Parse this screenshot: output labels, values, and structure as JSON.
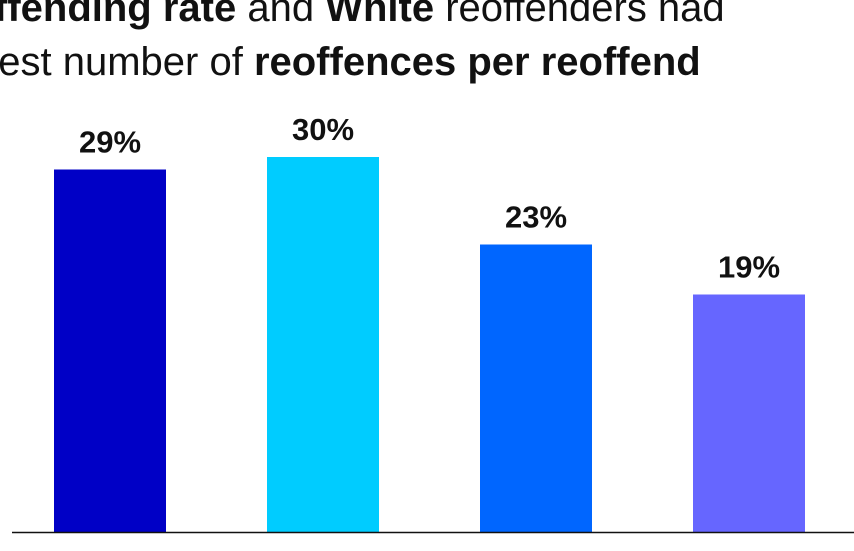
{
  "header": {
    "line1": [
      {
        "text": "ffending rate",
        "bold": true
      },
      {
        "text": " and ",
        "bold": false
      },
      {
        "text": "White",
        "bold": true
      },
      {
        "text": " reoffenders had",
        "bold": false
      }
    ],
    "line2": [
      {
        "text": "hest number of ",
        "bold": false
      },
      {
        "text": "reoffences per reoffend",
        "bold": true
      }
    ]
  },
  "chart_data": {
    "type": "bar",
    "categories": [
      "",
      "",
      "",
      ""
    ],
    "values": [
      29,
      30,
      23,
      19
    ],
    "value_labels": [
      "29%",
      "30%",
      "23%",
      "19%"
    ],
    "colors": [
      "#0000c6",
      "#00ccff",
      "#0066ff",
      "#6666ff"
    ],
    "unit": "%",
    "ylim": [
      0,
      30
    ],
    "grid": false,
    "legend": "none"
  }
}
